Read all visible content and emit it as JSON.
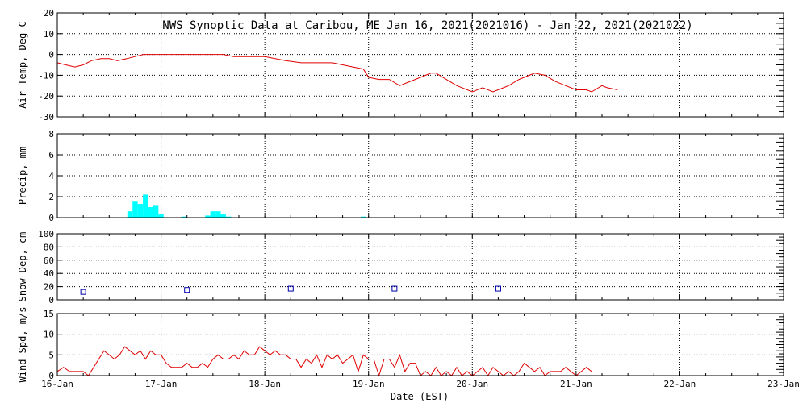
{
  "chart_data": [
    {
      "type": "line",
      "title": "NWS Synoptic Data at Caribou, ME   Jan 16, 2021(2021016) - Jan 22, 2021(2021022)",
      "ylabel": "Air Temp, Deg C",
      "ylim": [
        -30,
        20
      ],
      "yticks": [
        "20",
        "10",
        "0",
        "-10",
        "-20",
        "-30"
      ],
      "grid": true,
      "series": [
        {
          "color": "#e00000",
          "x_days": [
            0.0,
            0.08,
            0.17,
            0.25,
            0.33,
            0.42,
            0.5,
            0.58,
            0.67,
            0.75,
            0.83,
            0.92,
            1.0,
            1.1,
            1.2,
            1.3,
            1.4,
            1.5,
            1.6,
            1.7,
            1.8,
            1.9,
            2.0,
            2.1,
            2.2,
            2.35,
            2.5,
            2.65,
            2.75,
            2.85,
            2.95,
            3.0,
            3.1,
            3.2,
            3.3,
            3.4,
            3.5,
            3.6,
            3.65,
            3.75,
            3.85,
            4.0,
            4.1,
            4.2,
            4.3,
            4.35,
            4.45,
            4.55,
            4.6,
            4.7,
            4.8,
            4.9,
            5.0,
            5.1,
            5.15,
            5.25,
            5.3,
            5.4
          ],
          "values": [
            -4,
            -5,
            -6,
            -5,
            -3,
            -2,
            -2,
            -3,
            -2,
            -1,
            0,
            0,
            0,
            0,
            0,
            0,
            0,
            0,
            0,
            -1,
            -1,
            -1,
            -1,
            -2,
            -3,
            -4,
            -4,
            -4,
            -5,
            -6,
            -7,
            -11,
            -12,
            -12,
            -15,
            -13,
            -11,
            -9,
            -9,
            -12,
            -15,
            -18,
            -16,
            -18,
            -16,
            -15,
            -12,
            -10,
            -9,
            -10,
            -13,
            -15,
            -17,
            -17,
            -18,
            -15,
            -16,
            -17
          ]
        }
      ]
    },
    {
      "type": "bar",
      "ylabel": "Precip, mm",
      "ylim": [
        0,
        8
      ],
      "yticks": [
        "8",
        "6",
        "4",
        "2",
        "0"
      ],
      "grid": true,
      "color": "#00ffff",
      "bars": [
        {
          "x_days": 0.7,
          "value": 0.6
        },
        {
          "x_days": 0.75,
          "value": 1.6
        },
        {
          "x_days": 0.8,
          "value": 1.3
        },
        {
          "x_days": 0.85,
          "value": 2.2
        },
        {
          "x_days": 0.9,
          "value": 1.0
        },
        {
          "x_days": 0.95,
          "value": 1.2
        },
        {
          "x_days": 1.0,
          "value": 0.3
        },
        {
          "x_days": 1.22,
          "value": 0.1
        },
        {
          "x_days": 1.45,
          "value": 0.2
        },
        {
          "x_days": 1.5,
          "value": 0.6
        },
        {
          "x_days": 1.55,
          "value": 0.6
        },
        {
          "x_days": 1.6,
          "value": 0.3
        },
        {
          "x_days": 1.65,
          "value": 0.1
        },
        {
          "x_days": 2.95,
          "value": 0.1
        }
      ]
    },
    {
      "type": "scatter",
      "ylabel": "Snow Dep, cm",
      "ylim": [
        0,
        100
      ],
      "yticks": [
        "100",
        "80",
        "60",
        "40",
        "20",
        "0"
      ],
      "grid": true,
      "color": "#0000aa",
      "x_days": [
        0.25,
        1.25,
        2.25,
        3.25,
        4.25
      ],
      "values": [
        12,
        15,
        17,
        17,
        17
      ]
    },
    {
      "type": "line",
      "ylabel": "Wind Spd, m/s",
      "ylim": [
        0,
        15
      ],
      "yticks": [
        "15",
        "10",
        "5",
        "0"
      ],
      "grid": true,
      "xlabel": "Date (EST)",
      "xticks": [
        "16-Jan",
        "17-Jan",
        "18-Jan",
        "19-Jan",
        "20-Jan",
        "21-Jan",
        "22-Jan",
        "23-Jan"
      ],
      "series": [
        {
          "color": "#e00000",
          "x_days": [
            0.0,
            0.06,
            0.12,
            0.18,
            0.25,
            0.3,
            0.35,
            0.4,
            0.45,
            0.5,
            0.55,
            0.6,
            0.65,
            0.7,
            0.75,
            0.8,
            0.85,
            0.9,
            0.95,
            1.0,
            1.05,
            1.1,
            1.15,
            1.2,
            1.25,
            1.3,
            1.35,
            1.4,
            1.45,
            1.5,
            1.55,
            1.6,
            1.65,
            1.7,
            1.75,
            1.8,
            1.85,
            1.9,
            1.95,
            2.0,
            2.05,
            2.1,
            2.15,
            2.2,
            2.25,
            2.3,
            2.35,
            2.4,
            2.45,
            2.5,
            2.55,
            2.6,
            2.65,
            2.7,
            2.75,
            2.8,
            2.85,
            2.9,
            2.95,
            3.0,
            3.05,
            3.1,
            3.15,
            3.2,
            3.25,
            3.3,
            3.35,
            3.4,
            3.45,
            3.5,
            3.55,
            3.6,
            3.65,
            3.7,
            3.75,
            3.8,
            3.85,
            3.9,
            3.95,
            4.0,
            4.05,
            4.1,
            4.15,
            4.2,
            4.25,
            4.3,
            4.35,
            4.4,
            4.45,
            4.5,
            4.55,
            4.6,
            4.65,
            4.7,
            4.75,
            4.8,
            4.85,
            4.9,
            4.95,
            5.0,
            5.05,
            5.1,
            5.15
          ],
          "values": [
            1,
            2,
            1,
            1,
            1,
            0,
            2,
            4,
            6,
            5,
            4,
            5,
            7,
            6,
            5,
            6,
            4,
            6,
            5,
            5,
            3,
            2,
            2,
            2,
            3,
            2,
            2,
            3,
            2,
            4,
            5,
            4,
            4,
            5,
            4,
            6,
            5,
            5,
            7,
            6,
            5,
            6,
            5,
            5,
            4,
            4,
            2,
            4,
            3,
            5,
            2,
            5,
            4,
            5,
            3,
            4,
            5,
            1,
            5,
            4,
            4,
            0,
            4,
            4,
            2,
            5,
            1,
            3,
            3,
            0,
            1,
            0,
            2,
            0,
            1,
            0,
            2,
            0,
            1,
            0,
            1,
            2,
            0,
            2,
            1,
            0,
            1,
            0,
            1,
            3,
            2,
            1,
            2,
            0,
            1,
            1,
            1,
            2,
            1,
            0,
            1,
            2,
            1
          ]
        }
      ]
    }
  ]
}
